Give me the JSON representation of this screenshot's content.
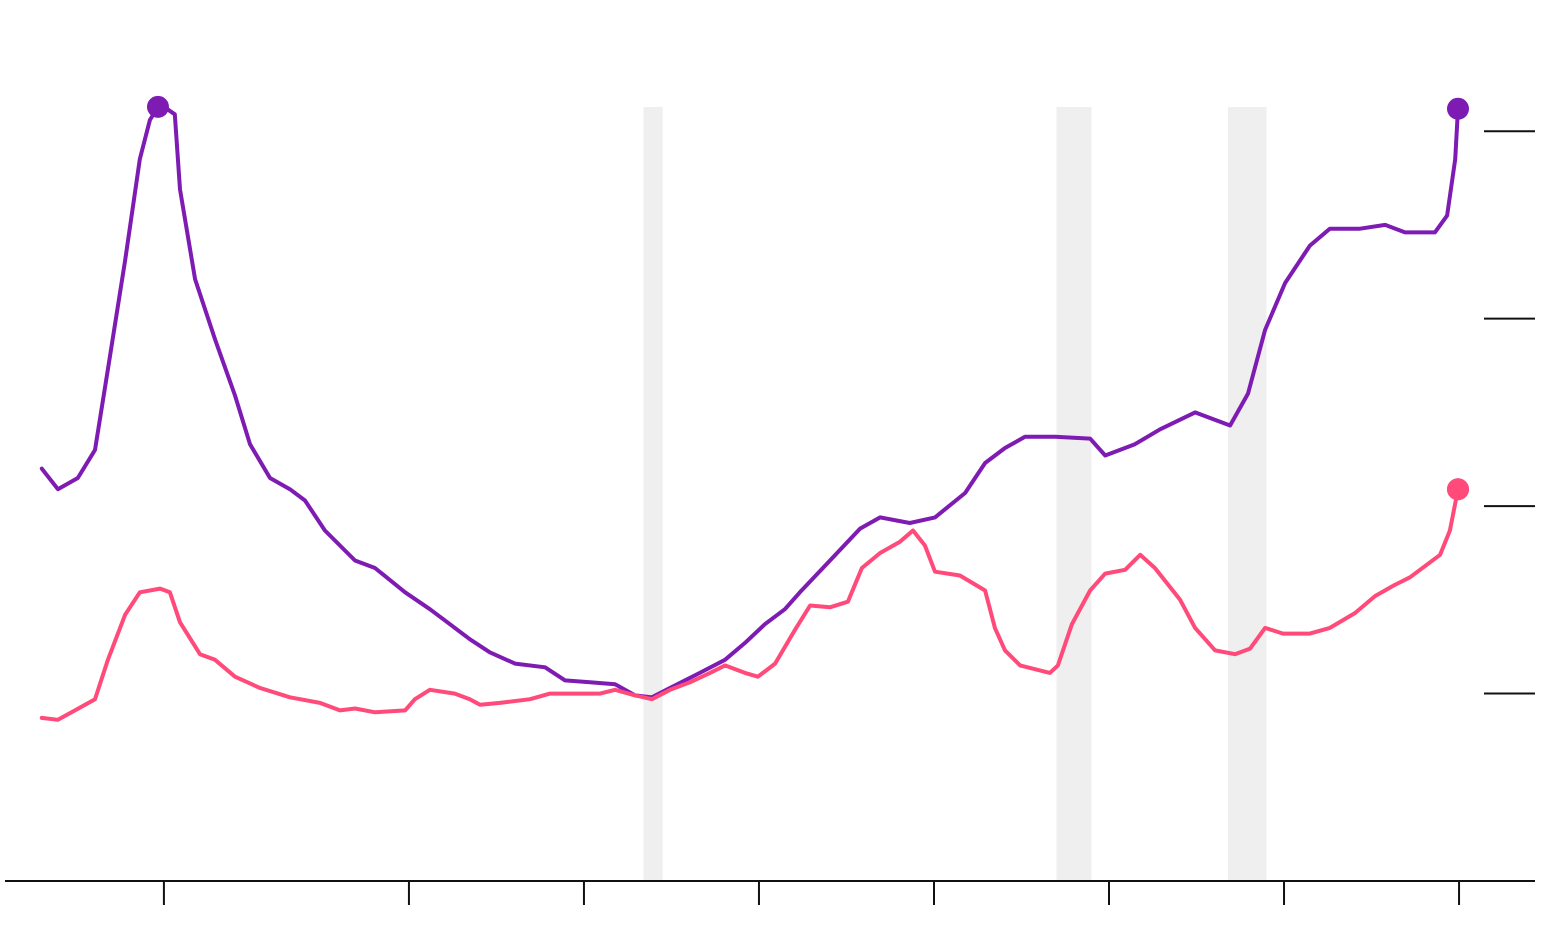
{
  "chart_data": {
    "type": "line",
    "xlim": [
      -4.54,
      39.17
    ],
    "ylim": [
      0,
      4.7
    ],
    "xticks": [
      0,
      7,
      12,
      17,
      22,
      27,
      32,
      37
    ],
    "yticks": [
      1,
      2,
      3,
      4
    ],
    "shaded_bands": [
      [
        13.7,
        14.25
      ],
      [
        25.5,
        26.5
      ],
      [
        30.4,
        31.5
      ]
    ],
    "band_color": "#efefef",
    "series": [
      {
        "color": "#7e1bb3",
        "x": [
          -3.49,
          -3.03,
          -2.46,
          -1.97,
          -1.6,
          -1.11,
          -0.69,
          -0.4,
          -0.17,
          0,
          0.31,
          0.46,
          0.89,
          1.46,
          2.03,
          2.46,
          3.03,
          3.6,
          4.03,
          4.6,
          5.46,
          6.03,
          6.89,
          7.6,
          8.17,
          8.74,
          9.31,
          10.03,
          10.89,
          11.46,
          12.17,
          12.89,
          13.46,
          13.94,
          14.46,
          15.31,
          16.03,
          16.6,
          17.17,
          17.74,
          18.17,
          19.03,
          19.89,
          20.46,
          21.31,
          22.03,
          22.89,
          23.46,
          24.03,
          24.6,
          25.46,
          26.46,
          26.89,
          27.74,
          28.46,
          29.46,
          30.03,
          30.46,
          30.97,
          31.46,
          32.03,
          32.74,
          33.31,
          34.17,
          34.89,
          35.46,
          36.31,
          36.66,
          36.89,
          36.97
        ],
        "values": [
          2.2,
          2.09,
          2.15,
          2.3,
          2.73,
          3.31,
          3.85,
          4.06,
          4.13,
          4.13,
          4.09,
          3.69,
          3.21,
          2.89,
          2.59,
          2.33,
          2.15,
          2.09,
          2.03,
          1.87,
          1.71,
          1.67,
          1.54,
          1.45,
          1.37,
          1.29,
          1.22,
          1.16,
          1.14,
          1.07,
          1.06,
          1.05,
          0.99,
          0.98,
          1.03,
          1.11,
          1.18,
          1.27,
          1.37,
          1.45,
          1.54,
          1.71,
          1.88,
          1.94,
          1.91,
          1.94,
          2.07,
          2.23,
          2.31,
          2.37,
          2.37,
          2.36,
          2.27,
          2.33,
          2.41,
          2.5,
          2.46,
          2.43,
          2.6,
          2.94,
          3.19,
          3.39,
          3.48,
          3.48,
          3.5,
          3.46,
          3.46,
          3.55,
          3.85,
          4.12
        ]
      },
      {
        "color": "#ff4a7a",
        "x": [
          -3.49,
          -3.03,
          -2.54,
          -1.97,
          -1.6,
          -1.11,
          -0.69,
          -0.11,
          0.17,
          0.46,
          1.03,
          1.46,
          2.03,
          2.74,
          3.6,
          4.46,
          5.03,
          5.46,
          6.03,
          6.89,
          7.17,
          7.6,
          8.31,
          8.74,
          9.03,
          9.6,
          10.46,
          11.03,
          11.74,
          12.46,
          12.89,
          13.46,
          13.94,
          14.46,
          15.03,
          15.6,
          16.03,
          16.6,
          16.97,
          17.46,
          18.03,
          18.46,
          19.03,
          19.54,
          19.94,
          20.46,
          21.03,
          21.4,
          21.74,
          22.03,
          22.74,
          23.46,
          23.74,
          24.03,
          24.46,
          25.31,
          25.54,
          25.94,
          26.46,
          26.89,
          27.46,
          27.89,
          28.31,
          29.03,
          29.46,
          30.03,
          30.6,
          31.03,
          31.46,
          31.97,
          32.74,
          33.31,
          34.03,
          34.6,
          35.17,
          35.6,
          36.46,
          36.74,
          36.97
        ],
        "values": [
          0.87,
          0.86,
          0.91,
          0.97,
          1.18,
          1.42,
          1.54,
          1.56,
          1.54,
          1.38,
          1.21,
          1.18,
          1.09,
          1.03,
          0.98,
          0.95,
          0.91,
          0.92,
          0.9,
          0.91,
          0.97,
          1.02,
          1.0,
          0.97,
          0.94,
          0.95,
          0.97,
          1.0,
          1.0,
          1.0,
          1.02,
          0.99,
          0.97,
          1.02,
          1.06,
          1.11,
          1.15,
          1.11,
          1.09,
          1.16,
          1.34,
          1.47,
          1.46,
          1.49,
          1.67,
          1.75,
          1.81,
          1.87,
          1.79,
          1.65,
          1.63,
          1.55,
          1.35,
          1.23,
          1.15,
          1.11,
          1.15,
          1.37,
          1.55,
          1.64,
          1.66,
          1.74,
          1.67,
          1.5,
          1.35,
          1.23,
          1.21,
          1.24,
          1.35,
          1.32,
          1.32,
          1.35,
          1.43,
          1.52,
          1.58,
          1.62,
          1.74,
          1.87,
          2.09
        ]
      }
    ]
  }
}
